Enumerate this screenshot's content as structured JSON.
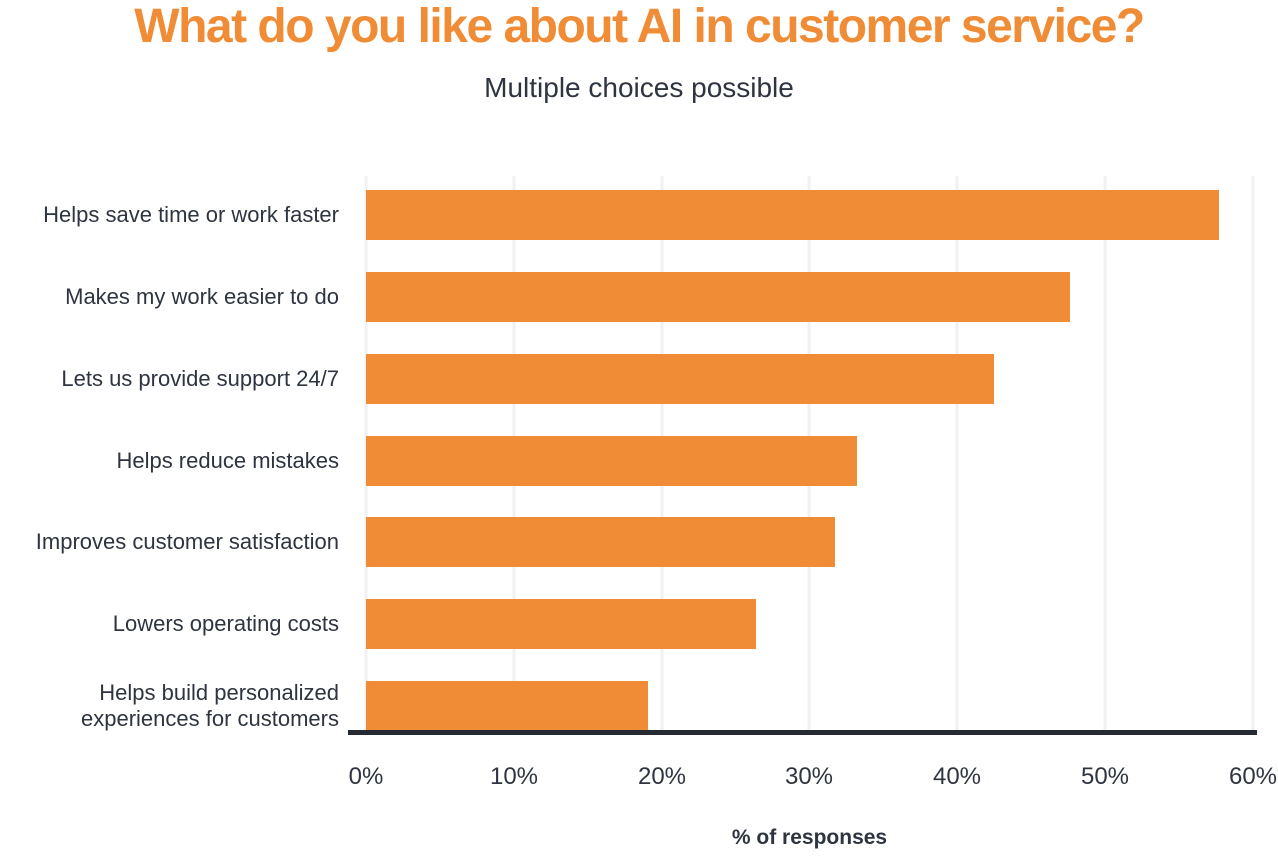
{
  "header": {
    "title": "What do you like about AI in customer service?",
    "subtitle": "Multiple choices possible"
  },
  "colors": {
    "bar": "#EF8C35",
    "title_text": "#EF8C35",
    "body_text": "#2E3440",
    "gridline": "#F1F1F1",
    "axis_line": "#262B33"
  },
  "chart_data": {
    "type": "bar",
    "orientation": "horizontal",
    "title": "What do you like about AI in customer service?",
    "subtitle": "Multiple choices possible",
    "categories": [
      "Helps save time or work faster",
      "Makes my work easier to do",
      "Lets us provide support 24/7",
      "Helps reduce mistakes",
      "Improves customer satisfaction",
      "Lowers operating costs",
      "Helps build personalized experiences for customers"
    ],
    "values": [
      57.7,
      47.6,
      42.5,
      33.2,
      31.7,
      26.4,
      19.1
    ],
    "xlabel": "% of responses",
    "ylabel": "",
    "xlim": [
      0,
      60
    ],
    "xticks": [
      "0%",
      "10%",
      "20%",
      "30%",
      "40%",
      "50%",
      "60%"
    ],
    "xtick_values": [
      0,
      10,
      20,
      30,
      40,
      50,
      60
    ],
    "grid": "vertical-light",
    "legend": "none",
    "bar_color": "#EF8C35"
  }
}
